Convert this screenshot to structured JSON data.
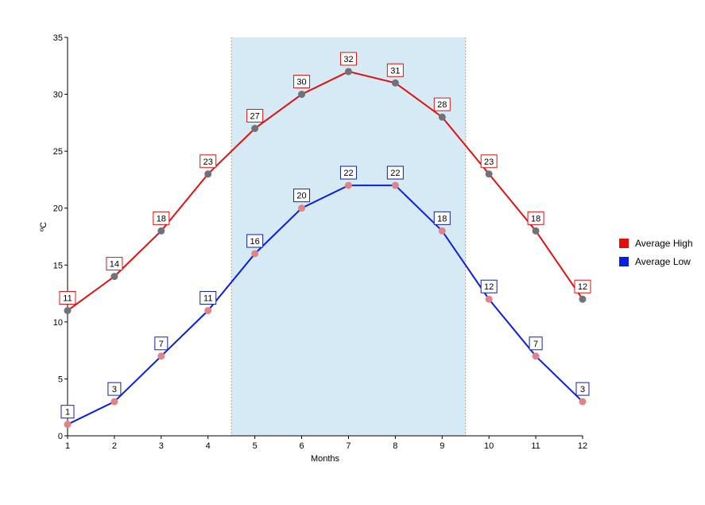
{
  "chart_data": {
    "type": "line",
    "title": "",
    "xlabel": "Months",
    "ylabel": "ºC",
    "x": [
      1,
      2,
      3,
      4,
      5,
      6,
      7,
      8,
      9,
      10,
      11,
      12
    ],
    "xlim": [
      1,
      12
    ],
    "ylim": [
      0,
      35
    ],
    "y_ticks": [
      0,
      5,
      10,
      15,
      20,
      25,
      30,
      35
    ],
    "highlight_range": [
      4.5,
      9.5
    ],
    "highlight_color": "#d6eaf6",
    "highlight_border_color": "#e8a23a",
    "legend_position": "right",
    "grid": false,
    "series": [
      {
        "name": "Average High",
        "color": "#e01010",
        "marker_color": "#6f7378",
        "label_border_color": "#e01010",
        "values": [
          11,
          14,
          18,
          23,
          27,
          30,
          32,
          31,
          28,
          23,
          18,
          12
        ]
      },
      {
        "name": "Average Low",
        "color": "#0a1ee0",
        "marker_color": "#e0848a",
        "label_border_color": "#1020a0",
        "values": [
          1,
          3,
          7,
          11,
          16,
          20,
          22,
          22,
          18,
          12,
          7,
          3
        ]
      }
    ]
  }
}
